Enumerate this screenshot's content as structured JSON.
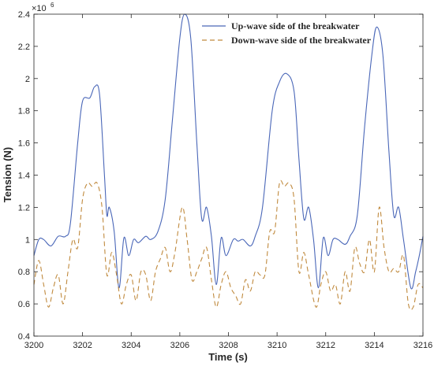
{
  "chart_data": {
    "type": "line",
    "title": "",
    "xlabel": "Time (s)",
    "ylabel": "Tension (N)",
    "y_multiplier_label": "×10",
    "y_multiplier_exponent": "6",
    "xlim": [
      3200,
      3216
    ],
    "ylim": [
      0.4,
      2.4
    ],
    "x_ticks": [
      "3200",
      "3202",
      "3204",
      "3206",
      "3208",
      "3210",
      "3212",
      "3214",
      "3216"
    ],
    "y_ticks": [
      "0.4",
      "0.6",
      "0.8",
      "1",
      "1.2",
      "1.4",
      "1.6",
      "1.8",
      "2",
      "2.2",
      "2.4"
    ],
    "grid": false,
    "legend_position": "top-right",
    "series": [
      {
        "name": "Up-wave side of the breakwater",
        "color": "#4a67b8",
        "style": "solid",
        "points": [
          [
            3200.0,
            0.9
          ],
          [
            3200.2,
            1.0
          ],
          [
            3200.4,
            1.0
          ],
          [
            3200.7,
            0.96
          ],
          [
            3201.0,
            1.02
          ],
          [
            3201.3,
            1.02
          ],
          [
            3201.5,
            1.1
          ],
          [
            3201.8,
            1.6
          ],
          [
            3202.0,
            1.86
          ],
          [
            3202.3,
            1.88
          ],
          [
            3202.5,
            1.95
          ],
          [
            3202.7,
            1.9
          ],
          [
            3202.9,
            1.4
          ],
          [
            3203.0,
            1.15
          ],
          [
            3203.1,
            1.2
          ],
          [
            3203.3,
            1.05
          ],
          [
            3203.5,
            0.7
          ],
          [
            3203.7,
            1.01
          ],
          [
            3203.9,
            0.9
          ],
          [
            3204.1,
            1.0
          ],
          [
            3204.3,
            0.98
          ],
          [
            3204.6,
            1.02
          ],
          [
            3204.8,
            1.0
          ],
          [
            3205.1,
            1.05
          ],
          [
            3205.4,
            1.25
          ],
          [
            3205.7,
            1.75
          ],
          [
            3206.0,
            2.25
          ],
          [
            3206.2,
            2.4
          ],
          [
            3206.45,
            2.25
          ],
          [
            3206.7,
            1.6
          ],
          [
            3206.9,
            1.13
          ],
          [
            3207.1,
            1.2
          ],
          [
            3207.3,
            1.02
          ],
          [
            3207.5,
            0.72
          ],
          [
            3207.7,
            1.01
          ],
          [
            3207.9,
            0.9
          ],
          [
            3208.2,
            1.0
          ],
          [
            3208.4,
            0.99
          ],
          [
            3208.6,
            1.0
          ],
          [
            3208.9,
            0.96
          ],
          [
            3209.1,
            1.02
          ],
          [
            3209.4,
            1.2
          ],
          [
            3209.8,
            1.8
          ],
          [
            3210.1,
            1.98
          ],
          [
            3210.4,
            2.03
          ],
          [
            3210.7,
            1.92
          ],
          [
            3210.9,
            1.5
          ],
          [
            3211.1,
            1.13
          ],
          [
            3211.3,
            1.2
          ],
          [
            3211.5,
            1.0
          ],
          [
            3211.7,
            0.7
          ],
          [
            3211.9,
            1.01
          ],
          [
            3212.1,
            0.9
          ],
          [
            3212.3,
            1.0
          ],
          [
            3212.5,
            1.0
          ],
          [
            3212.8,
            0.97
          ],
          [
            3213.0,
            1.02
          ],
          [
            3213.3,
            1.15
          ],
          [
            3213.6,
            1.7
          ],
          [
            3213.9,
            2.15
          ],
          [
            3214.1,
            2.32
          ],
          [
            3214.35,
            2.15
          ],
          [
            3214.6,
            1.55
          ],
          [
            3214.8,
            1.15
          ],
          [
            3215.0,
            1.2
          ],
          [
            3215.2,
            1.0
          ],
          [
            3215.5,
            0.7
          ],
          [
            3215.7,
            0.8
          ],
          [
            3215.85,
            0.9
          ],
          [
            3216.0,
            1.02
          ]
        ]
      },
      {
        "name": "Down-wave side of the breakwater",
        "color": "#c08a3e",
        "style": "dashed",
        "points": [
          [
            3200.0,
            0.72
          ],
          [
            3200.2,
            0.87
          ],
          [
            3200.4,
            0.72
          ],
          [
            3200.6,
            0.58
          ],
          [
            3200.8,
            0.7
          ],
          [
            3201.0,
            0.78
          ],
          [
            3201.2,
            0.6
          ],
          [
            3201.4,
            0.8
          ],
          [
            3201.6,
            1.0
          ],
          [
            3201.8,
            0.95
          ],
          [
            3202.0,
            1.25
          ],
          [
            3202.2,
            1.35
          ],
          [
            3202.4,
            1.33
          ],
          [
            3202.6,
            1.35
          ],
          [
            3202.8,
            1.2
          ],
          [
            3203.0,
            0.78
          ],
          [
            3203.2,
            0.92
          ],
          [
            3203.4,
            0.78
          ],
          [
            3203.6,
            0.6
          ],
          [
            3203.8,
            0.72
          ],
          [
            3204.0,
            0.78
          ],
          [
            3204.2,
            0.62
          ],
          [
            3204.4,
            0.8
          ],
          [
            3204.6,
            0.78
          ],
          [
            3204.8,
            0.62
          ],
          [
            3205.0,
            0.8
          ],
          [
            3205.2,
            0.88
          ],
          [
            3205.4,
            0.95
          ],
          [
            3205.6,
            0.8
          ],
          [
            3205.8,
            0.92
          ],
          [
            3206.1,
            1.2
          ],
          [
            3206.3,
            1.0
          ],
          [
            3206.5,
            0.75
          ],
          [
            3206.7,
            0.8
          ],
          [
            3206.9,
            0.88
          ],
          [
            3207.1,
            0.95
          ],
          [
            3207.3,
            0.75
          ],
          [
            3207.5,
            0.58
          ],
          [
            3207.7,
            0.72
          ],
          [
            3207.9,
            0.8
          ],
          [
            3208.1,
            0.7
          ],
          [
            3208.3,
            0.65
          ],
          [
            3208.5,
            0.6
          ],
          [
            3208.7,
            0.75
          ],
          [
            3208.9,
            0.68
          ],
          [
            3209.1,
            0.8
          ],
          [
            3209.3,
            0.78
          ],
          [
            3209.5,
            0.78
          ],
          [
            3209.7,
            1.05
          ],
          [
            3209.9,
            1.05
          ],
          [
            3210.1,
            1.35
          ],
          [
            3210.3,
            1.33
          ],
          [
            3210.5,
            1.35
          ],
          [
            3210.7,
            1.25
          ],
          [
            3210.9,
            0.8
          ],
          [
            3211.1,
            0.92
          ],
          [
            3211.3,
            0.78
          ],
          [
            3211.6,
            0.58
          ],
          [
            3211.8,
            0.72
          ],
          [
            3212.0,
            0.8
          ],
          [
            3212.2,
            0.68
          ],
          [
            3212.4,
            0.72
          ],
          [
            3212.6,
            0.6
          ],
          [
            3212.8,
            0.8
          ],
          [
            3213.0,
            0.68
          ],
          [
            3213.2,
            0.95
          ],
          [
            3213.4,
            0.85
          ],
          [
            3213.6,
            0.8
          ],
          [
            3213.8,
            1.0
          ],
          [
            3214.0,
            0.8
          ],
          [
            3214.2,
            1.2
          ],
          [
            3214.4,
            0.95
          ],
          [
            3214.6,
            0.8
          ],
          [
            3214.8,
            0.82
          ],
          [
            3215.0,
            0.8
          ],
          [
            3215.2,
            0.9
          ],
          [
            3215.4,
            0.6
          ],
          [
            3215.6,
            0.58
          ],
          [
            3215.8,
            0.72
          ],
          [
            3216.0,
            0.7
          ]
        ]
      }
    ]
  }
}
